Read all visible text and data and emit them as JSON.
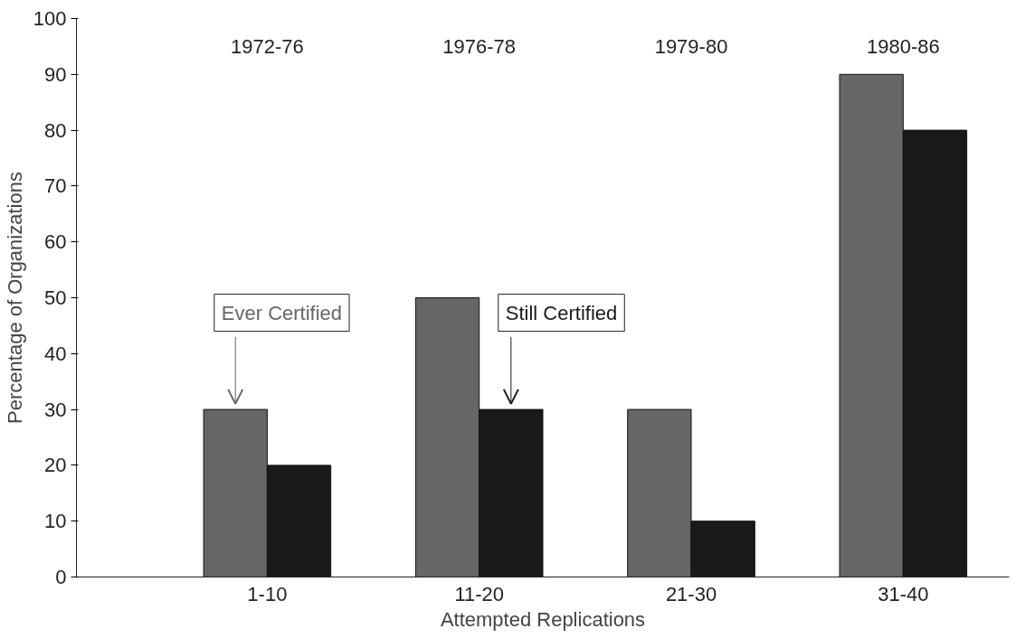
{
  "chart_data": {
    "type": "bar",
    "xlabel": "Attempted Replications",
    "ylabel": "Percentage of Organizations",
    "categories": [
      "1-10",
      "11-20",
      "21-30",
      "31-40"
    ],
    "series": [
      {
        "name": "Ever Certified",
        "color": "#666666",
        "values": [
          30,
          50,
          30,
          90
        ]
      },
      {
        "name": "Still Certified",
        "color": "#1a1a1a",
        "values": [
          20,
          30,
          10,
          80
        ]
      }
    ],
    "ylim": [
      0,
      100
    ],
    "yticks": [
      0,
      10,
      20,
      30,
      40,
      50,
      60,
      70,
      80,
      90,
      100
    ],
    "grid": false,
    "annotations": [
      "1972-76",
      "1976-78",
      "1979-80",
      "1980-86"
    ]
  }
}
